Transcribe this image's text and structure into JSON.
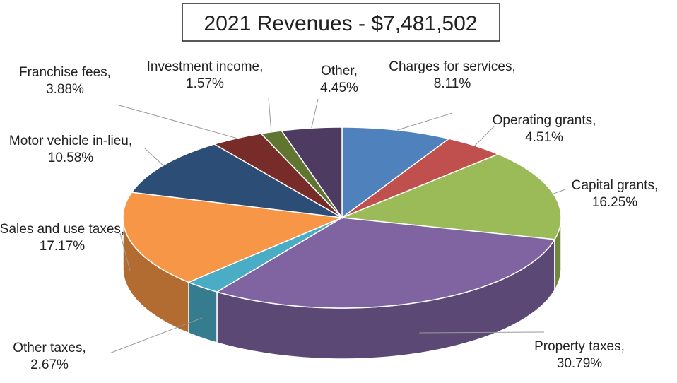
{
  "chart_data": {
    "type": "pie3d",
    "title": "2021 Revenues - $7,481,502",
    "categories": [
      "Charges for services",
      "Operating grants",
      "Capital grants",
      "Property taxes",
      "Other taxes",
      "Sales and use taxes",
      "Motor vehicle in-lieu",
      "Franchise fees",
      "Investment income",
      "Other"
    ],
    "values": [
      8.11,
      4.51,
      16.25,
      30.79,
      2.67,
      17.17,
      10.58,
      3.88,
      1.57,
      4.45
    ],
    "value_labels": [
      "8.11%",
      "4.51%",
      "16.25%",
      "30.79%",
      "2.67%",
      "17.17%",
      "10.58%",
      "3.88%",
      "1.57%",
      "4.45%"
    ],
    "label_separator": ",",
    "colors": [
      "#4f81bd",
      "#c0504d",
      "#9bbb59",
      "#8064a2",
      "#4bacc6",
      "#f79646",
      "#2c4d75",
      "#772c2a",
      "#5f7530",
      "#4d3b62"
    ]
  }
}
